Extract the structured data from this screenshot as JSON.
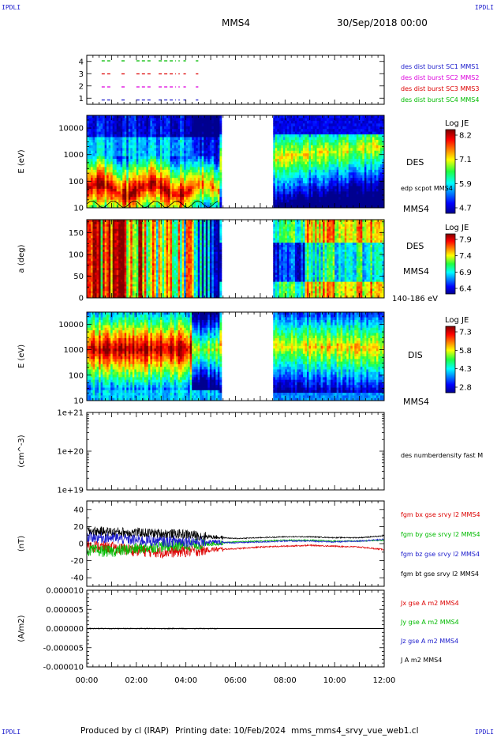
{
  "header": {
    "corner_label": "IPDLI",
    "spacecraft": "MMS4",
    "datetime": "30/Sep/2018 00:00"
  },
  "footer": {
    "produced_by": "Produced by cl (IRAP)",
    "printing_date": "Printing date: 10/Feb/2024",
    "filename": "mms_mms4_srvy_vue_web1.cl"
  },
  "time_axis": {
    "ticks": [
      "00:00",
      "02:00",
      "04:00",
      "06:00",
      "08:00",
      "10:00",
      "12:00"
    ],
    "range_hours": [
      0,
      12
    ]
  },
  "colors": {
    "mms1": "#1a1acc",
    "mms2": "#dd00dd",
    "mms3": "#dd0000",
    "mms4": "#00bb00",
    "bx": "#dd0000",
    "by": "#00bb00",
    "bz": "#1a1acc",
    "bt": "#000000"
  },
  "chart_data": [
    {
      "type": "line",
      "name": "burst availability",
      "yticks": [
        "4",
        "3",
        "2",
        "1"
      ],
      "ylim": [
        0.5,
        4.5
      ],
      "series": [
        {
          "name": "des dist burst SC1 MMS1",
          "color": "mms1",
          "level": 1,
          "segments": [
            [
              0.6,
              1.0
            ],
            [
              1.4,
              1.6
            ],
            [
              2.0,
              2.6
            ],
            [
              2.9,
              3.6
            ],
            [
              3.7,
              3.75
            ],
            [
              3.9,
              4.0
            ],
            [
              4.4,
              4.5
            ]
          ]
        },
        {
          "name": "des dist burst SC2 MMS2",
          "color": "mms2",
          "level": 2,
          "segments": [
            [
              0.6,
              1.0
            ],
            [
              1.4,
              1.6
            ],
            [
              2.0,
              2.6
            ],
            [
              2.9,
              3.6
            ],
            [
              3.7,
              3.75
            ],
            [
              3.9,
              4.0
            ],
            [
              4.4,
              4.5
            ]
          ]
        },
        {
          "name": "des dist burst SC3 MMS3",
          "color": "mms3",
          "level": 3,
          "segments": [
            [
              0.6,
              1.0
            ],
            [
              1.4,
              1.6
            ],
            [
              2.0,
              2.6
            ],
            [
              2.9,
              3.6
            ],
            [
              3.7,
              3.75
            ],
            [
              3.9,
              4.0
            ],
            [
              4.4,
              4.5
            ]
          ]
        },
        {
          "name": "des dist burst SC4 MMS4",
          "color": "mms4",
          "level": 4,
          "segments": [
            [
              0.6,
              1.0
            ],
            [
              1.4,
              1.6
            ],
            [
              2.0,
              2.6
            ],
            [
              2.9,
              3.6
            ],
            [
              3.7,
              3.75
            ],
            [
              3.9,
              4.0
            ],
            [
              4.4,
              4.5
            ]
          ]
        }
      ]
    },
    {
      "type": "heatmap",
      "name": "DES energy spectrogram",
      "ylabel": "E (eV)",
      "yscale": "log",
      "ylim": [
        10,
        30000
      ],
      "yticks": [
        "10000",
        "1000",
        "100",
        "10"
      ],
      "right_labels": [
        "DES",
        "edp scpot MMS4",
        "MMS4"
      ],
      "colorbar": {
        "title": "Log JE",
        "ticks": [
          "8.2",
          "7.1",
          "5.9",
          "4.7"
        ],
        "range": [
          4.7,
          8.2
        ]
      },
      "data_gap_hours": [
        5.4,
        7.55
      ]
    },
    {
      "type": "heatmap",
      "name": "DES pitch angle",
      "ylabel": "a (deg)",
      "ylim": [
        0,
        180
      ],
      "yticks": [
        "150",
        "100",
        "50",
        "0"
      ],
      "right_labels": [
        "DES",
        "MMS4",
        "140-186 eV"
      ],
      "colorbar": {
        "title": "Log JE",
        "ticks": [
          "7.9",
          "7.4",
          "6.9",
          "6.4"
        ],
        "range": [
          6.4,
          7.9
        ]
      },
      "data_gap_hours": [
        5.4,
        7.55
      ]
    },
    {
      "type": "heatmap",
      "name": "DIS energy spectrogram",
      "ylabel": "E (eV)",
      "yscale": "log",
      "ylim": [
        10,
        30000
      ],
      "yticks": [
        "10000",
        "1000",
        "100",
        "10"
      ],
      "right_labels": [
        "DIS",
        "MMS4"
      ],
      "colorbar": {
        "title": "Log JE",
        "ticks": [
          "7.3",
          "5.8",
          "4.3",
          "2.8"
        ],
        "range": [
          2.8,
          7.3
        ]
      },
      "data_gap_hours": [
        5.4,
        7.55
      ]
    },
    {
      "type": "line",
      "name": "density",
      "ylabel": "(cm^-3)",
      "yscale": "log",
      "yticks": [
        "1e+21",
        "1e+20",
        "1e+19"
      ],
      "ylim": [
        1e+19,
        1e+21
      ],
      "series": [
        {
          "name": "des numberdensity fast M",
          "values": []
        }
      ]
    },
    {
      "type": "line",
      "name": "magnetic field",
      "ylabel": "(nT)",
      "ylim": [
        -50,
        50
      ],
      "yticks": [
        "40",
        "20",
        "0",
        "-20",
        "-40"
      ],
      "series": [
        {
          "name": "fgm bx gse srvy l2 MMS4",
          "color": "bx",
          "profile": [
            [
              0,
              -2
            ],
            [
              1,
              -5
            ],
            [
              2,
              -8
            ],
            [
              3,
              -10
            ],
            [
              4,
              -9
            ],
            [
              5,
              -7
            ],
            [
              6,
              -6
            ],
            [
              7,
              -4
            ],
            [
              8,
              -3
            ],
            [
              9,
              -2
            ],
            [
              10,
              -3
            ],
            [
              11,
              -4
            ],
            [
              12,
              -7
            ]
          ]
        },
        {
          "name": "fgm by gse srvy l2 MMS4",
          "color": "by",
          "profile": [
            [
              0,
              -8
            ],
            [
              1,
              -9
            ],
            [
              2,
              -6
            ],
            [
              3,
              -3
            ],
            [
              4,
              -2
            ],
            [
              5,
              0
            ],
            [
              6,
              2
            ],
            [
              7,
              3
            ],
            [
              8,
              4
            ],
            [
              9,
              4
            ],
            [
              10,
              3
            ],
            [
              11,
              3
            ],
            [
              12,
              4
            ]
          ]
        },
        {
          "name": "fgm bz gse srvy l2 MMS4",
          "color": "bz",
          "profile": [
            [
              0,
              8
            ],
            [
              1,
              7
            ],
            [
              2,
              4
            ],
            [
              3,
              3
            ],
            [
              4,
              3
            ],
            [
              5,
              2
            ],
            [
              6,
              1
            ],
            [
              7,
              2
            ],
            [
              8,
              3
            ],
            [
              9,
              3
            ],
            [
              10,
              2
            ],
            [
              11,
              3
            ],
            [
              12,
              5
            ]
          ]
        },
        {
          "name": "fgm bt gse srvy l2 MMS4",
          "color": "bt",
          "profile": [
            [
              0,
              15
            ],
            [
              1,
              14
            ],
            [
              2,
              13
            ],
            [
              3,
              12
            ],
            [
              4,
              11
            ],
            [
              5,
              8
            ],
            [
              6,
              6
            ],
            [
              7,
              7
            ],
            [
              8,
              8
            ],
            [
              9,
              8
            ],
            [
              10,
              7
            ],
            [
              11,
              7
            ],
            [
              12,
              9
            ]
          ]
        }
      ]
    },
    {
      "type": "line",
      "name": "current density",
      "ylabel": "(A/m2)",
      "ylim": [
        -1e-05,
        1e-05
      ],
      "yticks": [
        "0.000010",
        "0.000005",
        "0.000000",
        "-0.000005",
        "-0.000010"
      ],
      "series": [
        {
          "name": "Jx gse A m2 MMS4",
          "color": "bx"
        },
        {
          "name": "Jy gse A m2 MMS4",
          "color": "by"
        },
        {
          "name": "Jz gse A m2 MMS4",
          "color": "bz"
        },
        {
          "name": "J A m2 MMS4",
          "color": "bt"
        }
      ]
    }
  ]
}
